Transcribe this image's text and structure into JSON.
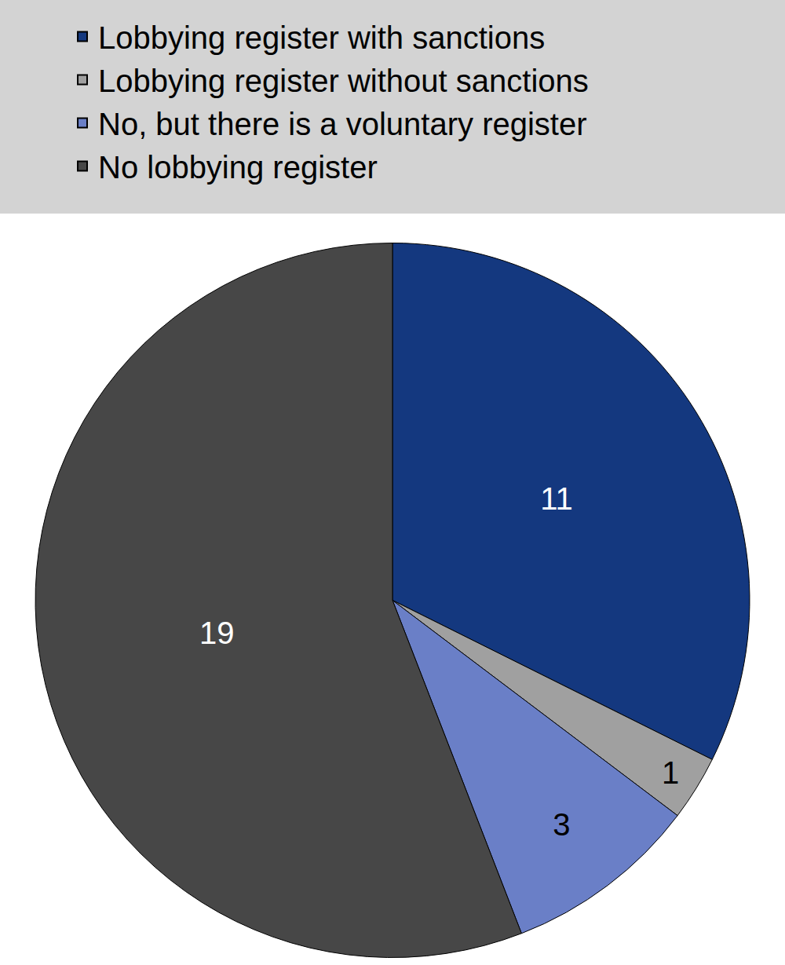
{
  "chart_data": {
    "type": "pie",
    "categories": [
      "Lobbying register with sanctions",
      "Lobbying register without sanctions",
      "No, but there is a voluntary register",
      "No lobbying register"
    ],
    "values": [
      11,
      1,
      3,
      19
    ],
    "colors": [
      "#14387f",
      "#a0a0a0",
      "#6a7fc7",
      "#474747"
    ],
    "data_labels": true,
    "legend": "top"
  }
}
